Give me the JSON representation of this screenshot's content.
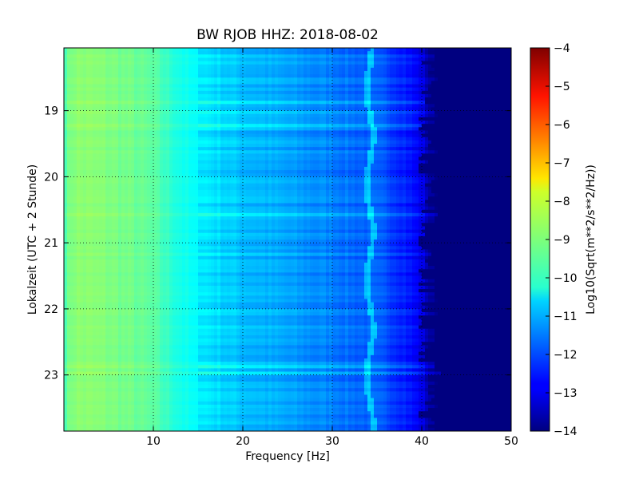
{
  "chart_data": {
    "type": "heatmap",
    "title": "BW RJOB HHZ: 2018-08-02",
    "xlabel": "Frequency [Hz]",
    "ylabel": "Lokalzeit (UTC + 2 Stunde)",
    "xlim": [
      0,
      50
    ],
    "ylim": [
      18.05,
      23.85
    ],
    "x_ticks": [
      10,
      20,
      30,
      40,
      50
    ],
    "x_tick_labels": [
      "10",
      "20",
      "30",
      "40",
      "50"
    ],
    "y_ticks": [
      19,
      20,
      21,
      22,
      23
    ],
    "y_tick_labels": [
      "19",
      "20",
      "21",
      "22",
      "23"
    ],
    "y_inverted": true,
    "grid": true,
    "colormap": "jet",
    "colorbar": {
      "label": "Log10(Sqrt(m**2/s**2/Hz))",
      "range": [
        -14,
        -4
      ],
      "ticks": [
        -4,
        -5,
        -6,
        -7,
        -8,
        -9,
        -10,
        -11,
        -12,
        -13,
        -14
      ],
      "tick_labels": [
        "−4",
        "−5",
        "−6",
        "−7",
        "−8",
        "−9",
        "−10",
        "−11",
        "−12",
        "−13",
        "−14"
      ]
    },
    "spectrum_profile": {
      "frequency": [
        0,
        1,
        2,
        5,
        8,
        10,
        12,
        14,
        16,
        18,
        20,
        22,
        25,
        28,
        30,
        32,
        34,
        36,
        38,
        40,
        41,
        42,
        50
      ],
      "value": [
        -9.5,
        -8.9,
        -8.9,
        -9.0,
        -9.2,
        -9.4,
        -9.8,
        -10.2,
        -10.5,
        -10.7,
        -10.9,
        -11.0,
        -11.2,
        -11.4,
        -11.5,
        -11.7,
        -11.8,
        -12.0,
        -12.4,
        -13.0,
        -13.8,
        -14.0,
        -14.0
      ]
    },
    "annotations": {
      "tone_frequency_hz": 34.2
    }
  }
}
